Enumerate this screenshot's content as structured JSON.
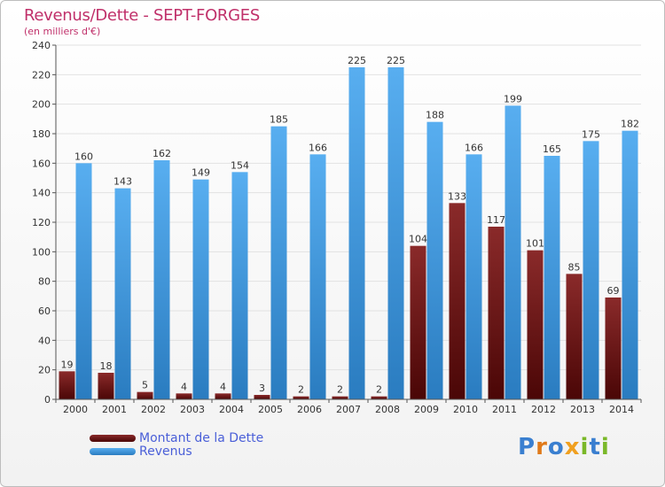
{
  "title": "Revenus/Dette - SEPT-FORGES",
  "subtitle": "(en milliers d'€)",
  "legend": {
    "dette_label": "Montant de la Dette",
    "revenus_label": "Revenus"
  },
  "logo": {
    "text": "Proxiti",
    "letters": [
      "P",
      "r",
      "o",
      "x",
      "i",
      "t",
      "i"
    ]
  },
  "colors": {
    "dette": "#6e1414",
    "revenus": "#4aa0e0",
    "title": "#c0306a",
    "legend_text": "#4a5fd8",
    "logo": [
      "#3a7fd0",
      "#e07a1a",
      "#3a7fd0",
      "#f0a020",
      "#7ab828",
      "#3a7fd0",
      "#7ab828"
    ]
  },
  "chart_data": {
    "type": "bar",
    "categories": [
      "2000",
      "2001",
      "2002",
      "2003",
      "2004",
      "2005",
      "2006",
      "2007",
      "2008",
      "2009",
      "2010",
      "2011",
      "2012",
      "2013",
      "2014"
    ],
    "series": [
      {
        "name": "Montant de la Dette",
        "values": [
          19,
          18,
          5,
          4,
          4,
          3,
          2,
          2,
          2,
          104,
          133,
          117,
          101,
          85,
          69
        ]
      },
      {
        "name": "Revenus",
        "values": [
          160,
          143,
          162,
          149,
          154,
          185,
          166,
          225,
          225,
          188,
          166,
          199,
          165,
          175,
          182
        ]
      }
    ],
    "ylim": [
      0,
      240
    ],
    "yticks": [
      0,
      20,
      40,
      60,
      80,
      100,
      120,
      140,
      160,
      180,
      200,
      220,
      240
    ],
    "grid": true
  }
}
